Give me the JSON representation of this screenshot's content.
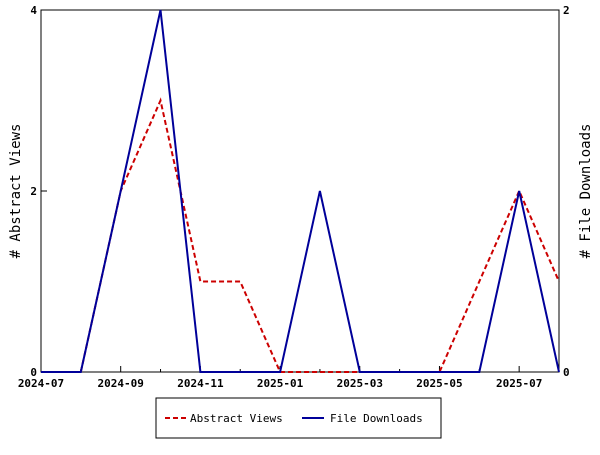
{
  "chart_data": {
    "type": "line",
    "x": [
      "2024-07",
      "2024-08",
      "2024-09",
      "2024-10",
      "2024-11",
      "2024-12",
      "2025-01",
      "2025-02",
      "2025-03",
      "2025-04",
      "2025-05",
      "2025-06",
      "2025-07",
      "2025-08"
    ],
    "x_tick_labels": [
      "2024-07",
      "2024-09",
      "2024-11",
      "2025-01",
      "2025-03",
      "2025-05",
      "2025-07"
    ],
    "series": [
      {
        "name": "Abstract Views",
        "axis": "left",
        "color": "#cc0000",
        "dash": "dashed",
        "values": [
          0,
          0,
          2,
          3,
          1,
          1,
          0,
          0,
          0,
          0,
          0,
          1,
          2,
          1
        ]
      },
      {
        "name": "File Downloads",
        "axis": "right",
        "color": "#000099",
        "dash": "solid",
        "values": [
          0,
          0,
          1,
          2,
          0,
          0,
          0,
          1,
          0,
          0,
          0,
          0,
          1,
          0
        ]
      }
    ],
    "ylabel_left": "# Abstract Views",
    "ylabel_right": "# File Downloads",
    "ylim_left": [
      0,
      4
    ],
    "ylim_right": [
      0,
      2
    ],
    "yticks_left": [
      "0",
      "2",
      "4"
    ],
    "yticks_right": [
      "0",
      "2"
    ],
    "legend_position": "bottom-center",
    "grid": false
  }
}
